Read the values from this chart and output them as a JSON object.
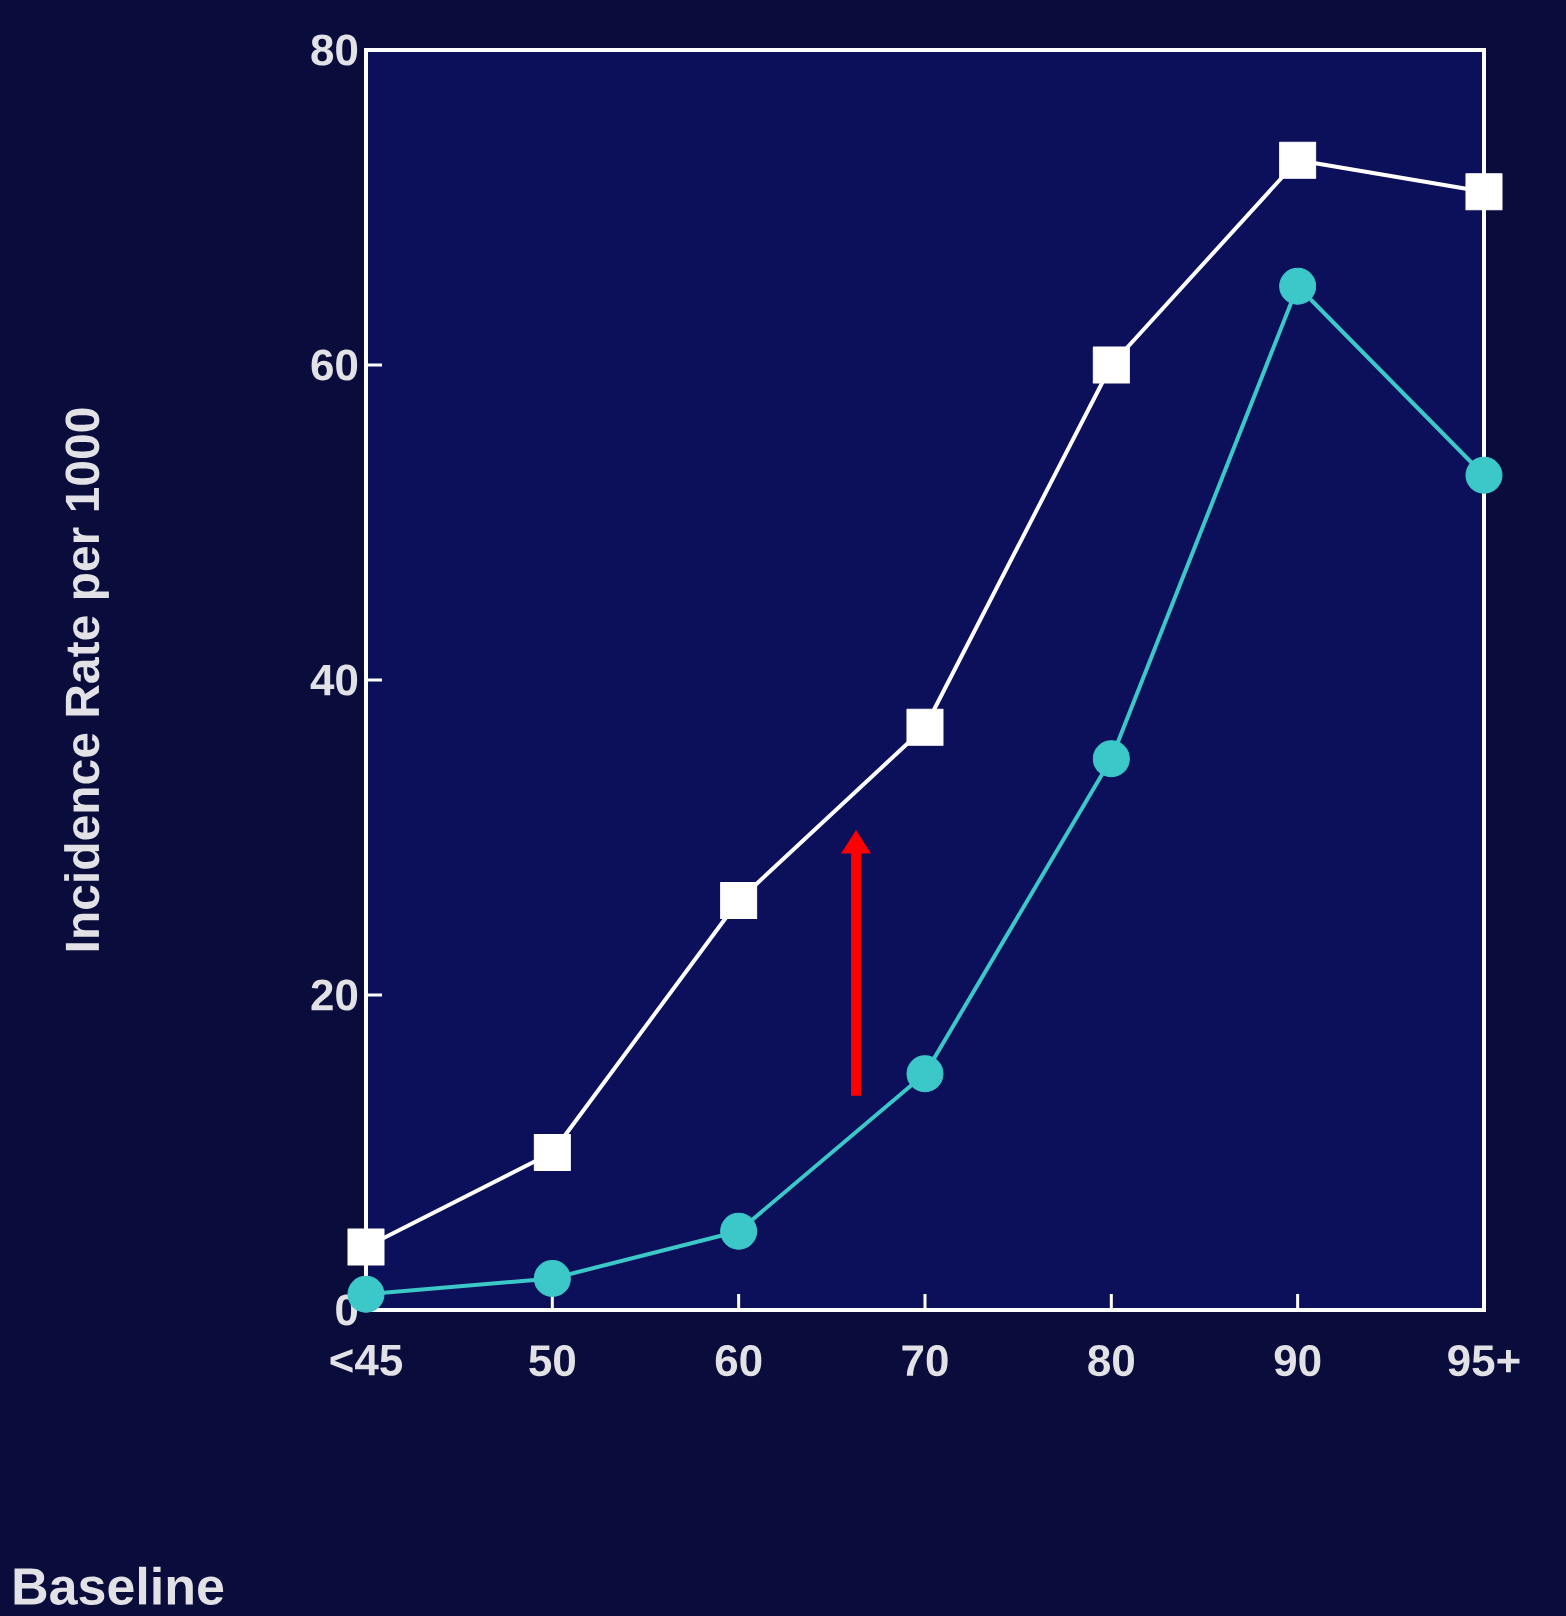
{
  "chart_data": {
    "type": "line",
    "xlabel": "Baseline",
    "ylabel": "Incidence Rate per 1000",
    "categories": [
      "<45",
      "50",
      "60",
      "70",
      "80",
      "90",
      "95+"
    ],
    "ylim": [
      0,
      80
    ],
    "yticks": [
      0,
      20,
      40,
      60,
      80
    ],
    "grid": false,
    "series": [
      {
        "color": "#ffffff",
        "marker": "square",
        "values": [
          4,
          10,
          26,
          37,
          60,
          73,
          71
        ]
      },
      {
        "color": "#3cc8c8",
        "marker": "circle",
        "values": [
          1,
          2,
          5,
          15,
          35,
          65,
          53
        ]
      }
    ]
  }
}
